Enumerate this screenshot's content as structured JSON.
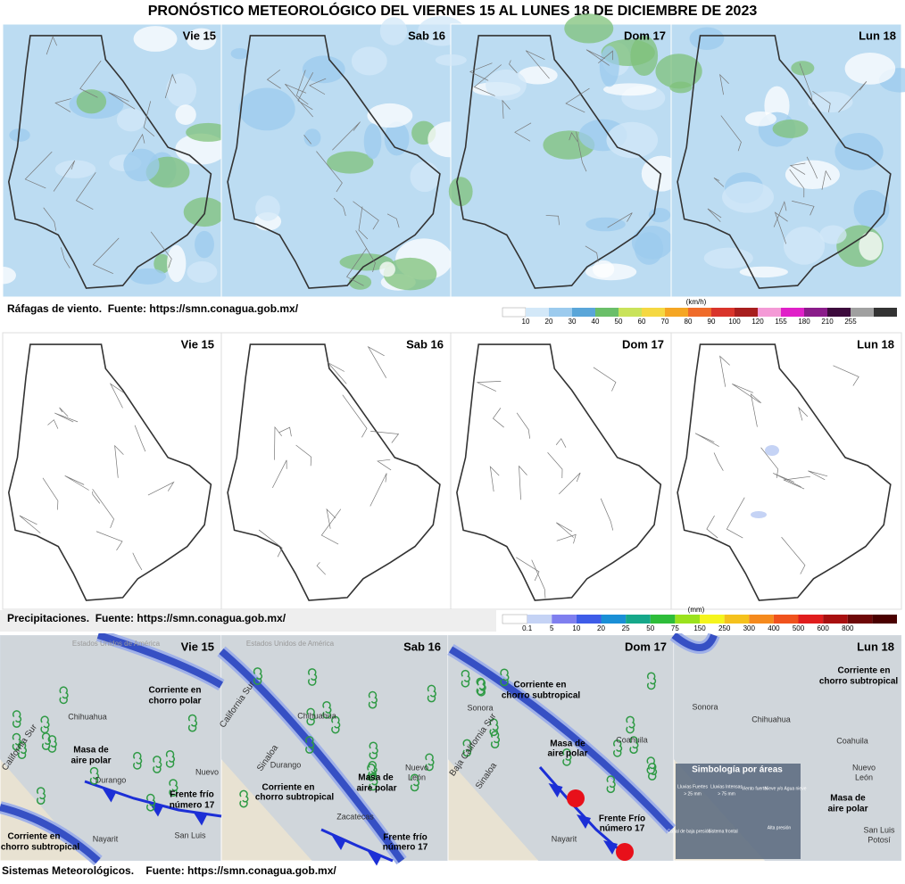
{
  "title": "PRONÓSTICO METEOROLÓGICO DEL VIERNES 15 AL LUNES 18 DE DICIEMBRE DE 2023",
  "days": [
    "Vie 15",
    "Sab 16",
    "Dom 17",
    "Lun 18"
  ],
  "wind": {
    "caption": "Ráfagas de viento.  Fuente: https://smn.conagua.gob.mx/",
    "unit": "(km/h)",
    "scale": [
      {
        "label": "10",
        "color": "#d3e8f8"
      },
      {
        "label": "20",
        "color": "#9ccbee"
      },
      {
        "label": "30",
        "color": "#5aa6d9"
      },
      {
        "label": "40",
        "color": "#6abf69"
      },
      {
        "label": "50",
        "color": "#c9e35a"
      },
      {
        "label": "60",
        "color": "#f5d842"
      },
      {
        "label": "70",
        "color": "#f5a623"
      },
      {
        "label": "80",
        "color": "#ef6b2a"
      },
      {
        "label": "90",
        "color": "#d9342b"
      },
      {
        "label": "100",
        "color": "#a81e1e"
      },
      {
        "label": "120",
        "color": "#f49ad6"
      },
      {
        "label": "155",
        "color": "#e020c8"
      },
      {
        "label": "180",
        "color": "#8a1c8a"
      },
      {
        "label": "210",
        "color": "#3c0a3c"
      },
      {
        "label": "255",
        "color": "#a0a0a0"
      }
    ]
  },
  "precipitation": {
    "caption": "Precipitaciones.  Fuente: https://smn.conagua.gob.mx/",
    "unit": "(mm)",
    "scale": [
      {
        "label": "0.1",
        "color": "#c5d3f5"
      },
      {
        "label": "5",
        "color": "#7f7fef"
      },
      {
        "label": "10",
        "color": "#3e5ce8"
      },
      {
        "label": "20",
        "color": "#1a8fd6"
      },
      {
        "label": "25",
        "color": "#16a88a"
      },
      {
        "label": "50",
        "color": "#2ebd3a"
      },
      {
        "label": "75",
        "color": "#9be21d"
      },
      {
        "label": "150",
        "color": "#f5f51d"
      },
      {
        "label": "250",
        "color": "#f5c21d"
      },
      {
        "label": "300",
        "color": "#f58a1d"
      },
      {
        "label": "400",
        "color": "#f0521d"
      },
      {
        "label": "500",
        "color": "#e01d1d"
      },
      {
        "label": "600",
        "color": "#a80f0f"
      },
      {
        "label": "800",
        "color": "#6e0808"
      }
    ]
  },
  "systems": {
    "caption": "Sistemas Meteorológicos.    Fuente: https://smn.conagua.gob.mx/",
    "panels": [
      {
        "labels": [
          "Estados Unidos de América",
          "Corriente en",
          "chorro polar",
          "Chihuahua",
          "Masa de",
          "aire polar",
          "Durango",
          "Nuevo",
          "Frente frío",
          "número 17",
          "Corriente en",
          "chorro subtropical",
          "Nayarit",
          "San Luis",
          "California Sur"
        ]
      },
      {
        "labels": [
          "Estados Unidos de América",
          "Chihuahua",
          "Durango",
          "Corriente en",
          "chorro subtropical",
          "Masa de",
          "aire polar",
          "Nuevo",
          "León",
          "Zacatecas",
          "Frente frío",
          "número 17",
          "Sinaloa",
          "California Sur"
        ]
      },
      {
        "labels": [
          "Corriente en",
          "chorro subtropical",
          "Sonora",
          "Coahuila",
          "Masa de",
          "aire polar",
          "Frente Frío",
          "número 17",
          "Nayarit",
          "Sinaloa",
          "Baja California Sur"
        ]
      },
      {
        "labels": [
          "Corriente en",
          "chorro subtropical",
          "Sonora",
          "Chihuahua",
          "Coahuila",
          "Nuevo",
          "León",
          "Masa de",
          "aire polar",
          "San Luis",
          "Potosí",
          "Simbología por áreas",
          "Lluvias Fuertes",
          "> 25 mm",
          "Lluvias Intensas",
          "> 75 mm",
          "Viento fuerte",
          "Nieve y/o Agua nieve",
          "Canal de baja presión",
          "Sistema frontal",
          "Alta presión"
        ]
      }
    ]
  }
}
